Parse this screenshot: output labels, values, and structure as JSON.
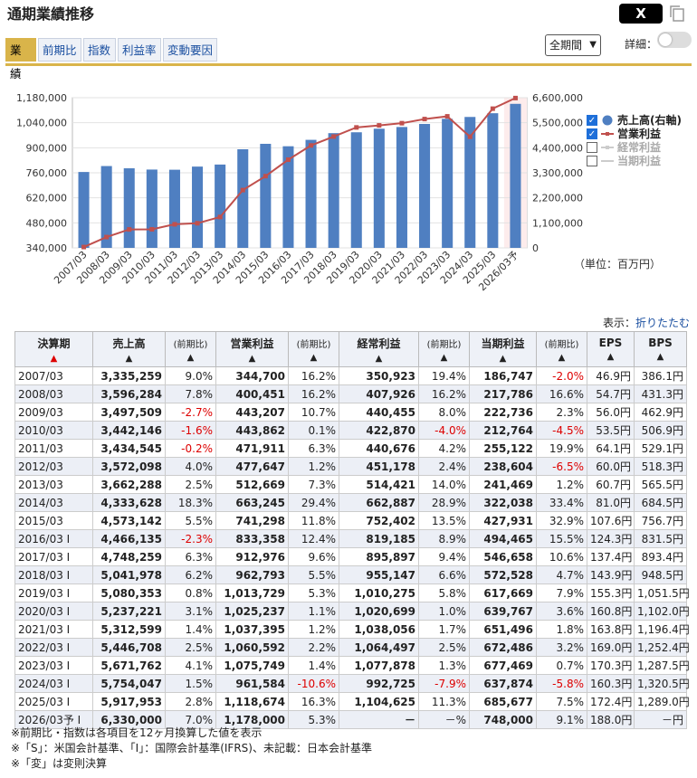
{
  "header": {
    "title": "通期業績推移",
    "x_label": "X"
  },
  "tabs": [
    {
      "label": "業績",
      "active": true
    },
    {
      "label": "前期比",
      "active": false
    },
    {
      "label": "指数",
      "active": false
    },
    {
      "label": "利益率",
      "active": false
    },
    {
      "label": "変動要因",
      "active": false
    }
  ],
  "controls": {
    "period_select": "全期間",
    "detail_label": "詳細：",
    "detail_on": false
  },
  "colors": {
    "bar": "#4f7fc1",
    "line": "#c0504d",
    "accent": "#d9b44a"
  },
  "chart_data": {
    "type": "bar+line",
    "categories": [
      "2007/03",
      "2008/03",
      "2009/03",
      "2010/03",
      "2011/03",
      "2012/03",
      "2013/03",
      "2014/03",
      "2015/03",
      "2016/03",
      "2017/03",
      "2018/03",
      "2019/03",
      "2020/03",
      "2021/03",
      "2022/03",
      "2023/03",
      "2024/03",
      "2025/03",
      "2026/03予"
    ],
    "series": [
      {
        "name": "売上高(右軸)",
        "type": "bar",
        "axis": "right",
        "values": [
          3335259,
          3596284,
          3497509,
          3442146,
          3434545,
          3572098,
          3662288,
          4333628,
          4573142,
          4466135,
          4748259,
          5041978,
          5080353,
          5237221,
          5312599,
          5446708,
          5671762,
          5754047,
          5917953,
          6330000
        ]
      },
      {
        "name": "営業利益",
        "type": "line",
        "axis": "left",
        "values": [
          344700,
          400451,
          443207,
          443862,
          471911,
          477647,
          512669,
          663245,
          741298,
          833358,
          912976,
          962793,
          1013729,
          1025237,
          1037395,
          1060592,
          1075749,
          961584,
          1118674,
          1178000
        ]
      },
      {
        "name": "経常利益",
        "type": "line",
        "visible": false
      },
      {
        "name": "当期利益",
        "type": "line",
        "visible": false
      }
    ],
    "y_left": {
      "min": 340000,
      "max": 1180000,
      "ticks": [
        "340,000",
        "480,000",
        "620,000",
        "760,000",
        "900,000",
        "1,040,000",
        "1,180,000"
      ]
    },
    "y_right": {
      "min": 0,
      "max": 6600000,
      "ticks": [
        "0",
        "1,100,000",
        "2,200,000",
        "3,300,000",
        "4,400,000",
        "5,500,000",
        "6,600,000"
      ]
    },
    "grid": true,
    "legend_position": "right",
    "unit_label": "（単位：百万円）"
  },
  "display": {
    "label": "表示：",
    "link": "折りたたむ"
  },
  "table": {
    "headers": {
      "period": "決算期",
      "sales": "売上高",
      "chg": "(前期比)",
      "op": "営業利益",
      "ord": "経常利益",
      "net": "当期利益",
      "eps": "EPS",
      "bps": "BPS",
      "sort_arrow": "▲",
      "small_arrow": "▲"
    },
    "rows": [
      [
        "2007/03",
        "3,335,259",
        "9.0%",
        "344,700",
        "16.2%",
        "350,923",
        "19.4%",
        "186,747",
        "-2.0%",
        "46.9円",
        "386.1円"
      ],
      [
        "2008/03",
        "3,596,284",
        "7.8%",
        "400,451",
        "16.2%",
        "407,926",
        "16.2%",
        "217,786",
        "16.6%",
        "54.7円",
        "431.3円"
      ],
      [
        "2009/03",
        "3,497,509",
        "-2.7%",
        "443,207",
        "10.7%",
        "440,455",
        "8.0%",
        "222,736",
        "2.3%",
        "56.0円",
        "462.9円"
      ],
      [
        "2010/03",
        "3,442,146",
        "-1.6%",
        "443,862",
        "0.1%",
        "422,870",
        "-4.0%",
        "212,764",
        "-4.5%",
        "53.5円",
        "506.9円"
      ],
      [
        "2011/03",
        "3,434,545",
        "-0.2%",
        "471,911",
        "6.3%",
        "440,676",
        "4.2%",
        "255,122",
        "19.9%",
        "64.1円",
        "529.1円"
      ],
      [
        "2012/03",
        "3,572,098",
        "4.0%",
        "477,647",
        "1.2%",
        "451,178",
        "2.4%",
        "238,604",
        "-6.5%",
        "60.0円",
        "518.3円"
      ],
      [
        "2013/03",
        "3,662,288",
        "2.5%",
        "512,669",
        "7.3%",
        "514,421",
        "14.0%",
        "241,469",
        "1.2%",
        "60.7円",
        "565.5円"
      ],
      [
        "2014/03",
        "4,333,628",
        "18.3%",
        "663,245",
        "29.4%",
        "662,887",
        "28.9%",
        "322,038",
        "33.4%",
        "81.0円",
        "684.5円"
      ],
      [
        "2015/03",
        "4,573,142",
        "5.5%",
        "741,298",
        "11.8%",
        "752,402",
        "13.5%",
        "427,931",
        "32.9%",
        "107.6円",
        "756.7円"
      ],
      [
        "2016/03 I",
        "4,466,135",
        "-2.3%",
        "833,358",
        "12.4%",
        "819,185",
        "8.9%",
        "494,465",
        "15.5%",
        "124.3円",
        "831.5円"
      ],
      [
        "2017/03 I",
        "4,748,259",
        "6.3%",
        "912,976",
        "9.6%",
        "895,897",
        "9.4%",
        "546,658",
        "10.6%",
        "137.4円",
        "893.4円"
      ],
      [
        "2018/03 I",
        "5,041,978",
        "6.2%",
        "962,793",
        "5.5%",
        "955,147",
        "6.6%",
        "572,528",
        "4.7%",
        "143.9円",
        "948.5円"
      ],
      [
        "2019/03 I",
        "5,080,353",
        "0.8%",
        "1,013,729",
        "5.3%",
        "1,010,275",
        "5.8%",
        "617,669",
        "7.9%",
        "155.3円",
        "1,051.5円"
      ],
      [
        "2020/03 I",
        "5,237,221",
        "3.1%",
        "1,025,237",
        "1.1%",
        "1,020,699",
        "1.0%",
        "639,767",
        "3.6%",
        "160.8円",
        "1,102.0円"
      ],
      [
        "2021/03 I",
        "5,312,599",
        "1.4%",
        "1,037,395",
        "1.2%",
        "1,038,056",
        "1.7%",
        "651,496",
        "1.8%",
        "163.8円",
        "1,196.4円"
      ],
      [
        "2022/03 I",
        "5,446,708",
        "2.5%",
        "1,060,592",
        "2.2%",
        "1,064,497",
        "2.5%",
        "672,486",
        "3.2%",
        "169.0円",
        "1,252.4円"
      ],
      [
        "2023/03 I",
        "5,671,762",
        "4.1%",
        "1,075,749",
        "1.4%",
        "1,077,878",
        "1.3%",
        "677,469",
        "0.7%",
        "170.3円",
        "1,287.5円"
      ],
      [
        "2024/03 I",
        "5,754,047",
        "1.5%",
        "961,584",
        "-10.6%",
        "992,725",
        "-7.9%",
        "637,874",
        "-5.8%",
        "160.3円",
        "1,320.5円"
      ],
      [
        "2025/03 I",
        "5,917,953",
        "2.8%",
        "1,118,674",
        "16.3%",
        "1,104,625",
        "11.3%",
        "685,677",
        "7.5%",
        "172.4円",
        "1,289.0円"
      ],
      [
        "2026/03予 I",
        "6,330,000",
        "7.0%",
        "1,178,000",
        "5.3%",
        "－",
        "－%",
        "748,000",
        "9.1%",
        "188.0円",
        "－円"
      ]
    ]
  },
  "notes": [
    "※前期比・指数は各項目を12ヶ月換算した値を表示",
    "※「S」：米国会計基準、「I」：国際会計基準(IFRS)、未記載：日本会計基準",
    "※「変」は変則決算"
  ]
}
